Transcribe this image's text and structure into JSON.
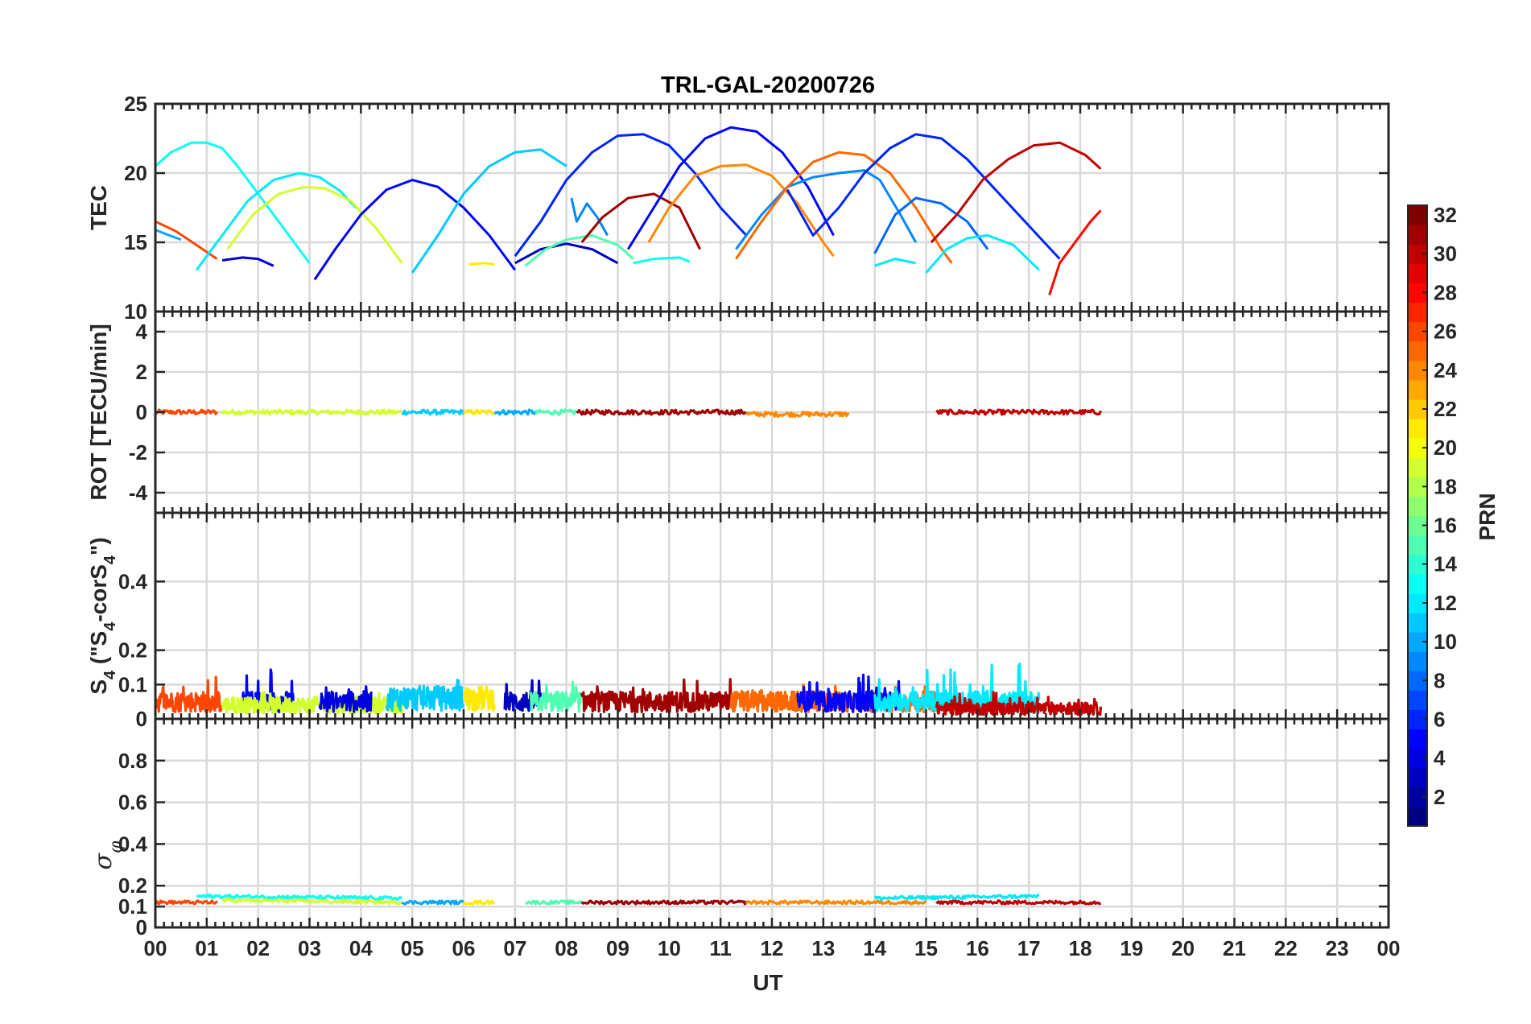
{
  "figure": {
    "title": "TRL-GAL-20200726",
    "xlabel": "UT",
    "x_ticks": [
      "00",
      "01",
      "02",
      "03",
      "04",
      "05",
      "06",
      "07",
      "08",
      "09",
      "10",
      "11",
      "12",
      "13",
      "14",
      "15",
      "16",
      "17",
      "18",
      "19",
      "20",
      "21",
      "22",
      "23",
      "00"
    ],
    "colorbar": {
      "label": "PRN",
      "ticks": [
        "2",
        "4",
        "6",
        "8",
        "10",
        "12",
        "14",
        "16",
        "18",
        "20",
        "22",
        "24",
        "26",
        "28",
        "30",
        "32"
      ],
      "range": [
        1,
        32
      ],
      "colormap": "jet"
    }
  },
  "chart_data": [
    {
      "panel": "tec",
      "type": "line",
      "ylabel": "TEC",
      "ylim": [
        10,
        25
      ],
      "y_ticks": [
        "10",
        "15",
        "20",
        "25"
      ],
      "xlim": [
        0,
        24
      ],
      "grid": true,
      "series": [
        {
          "prn": 13,
          "x": [
            0.0,
            0.3,
            0.7,
            1.0,
            1.3,
            1.6,
            2.0,
            2.4,
            2.8,
            3.0
          ],
          "y": [
            20.5,
            21.5,
            22.2,
            22.2,
            21.8,
            20.5,
            18.5,
            16.5,
            14.5,
            13.5
          ]
        },
        {
          "prn": 10,
          "x": [
            0.0,
            0.2,
            0.5
          ],
          "y": [
            15.9,
            15.6,
            15.2
          ]
        },
        {
          "prn": 26,
          "x": [
            0.0,
            0.4,
            0.8,
            1.2
          ],
          "y": [
            16.5,
            15.8,
            14.8,
            13.8
          ]
        },
        {
          "prn": 4,
          "x": [
            1.3,
            1.7,
            2.0,
            2.3
          ],
          "y": [
            13.7,
            13.9,
            13.8,
            13.3
          ]
        },
        {
          "prn": 12,
          "x": [
            0.8,
            1.3,
            1.8,
            2.3,
            2.8,
            3.2,
            3.6,
            3.9
          ],
          "y": [
            13.0,
            15.5,
            18.0,
            19.5,
            20.0,
            19.7,
            18.7,
            17.5
          ]
        },
        {
          "prn": 19,
          "x": [
            1.4,
            1.9,
            2.4,
            2.9,
            3.3,
            3.8,
            4.3,
            4.8
          ],
          "y": [
            14.5,
            17.0,
            18.5,
            19.0,
            18.9,
            18.0,
            16.0,
            13.5
          ]
        },
        {
          "prn": 5,
          "x": [
            3.1,
            3.5,
            4.0,
            4.5,
            5.0,
            5.5,
            6.0,
            6.5,
            7.0
          ],
          "y": [
            12.3,
            14.5,
            17.0,
            18.8,
            19.5,
            19.0,
            17.5,
            15.5,
            13.0
          ]
        },
        {
          "prn": 11,
          "x": [
            5.0,
            5.5,
            6.0,
            6.5,
            7.0,
            7.5,
            8.0
          ],
          "y": [
            12.8,
            15.5,
            18.5,
            20.5,
            21.5,
            21.7,
            20.5
          ]
        },
        {
          "prn": 21,
          "x": [
            6.1,
            6.4,
            6.6
          ],
          "y": [
            13.4,
            13.5,
            13.4
          ]
        },
        {
          "prn": 3,
          "x": [
            7.0,
            7.5,
            8.0,
            8.5,
            9.0
          ],
          "y": [
            13.5,
            14.5,
            14.9,
            14.5,
            13.5
          ]
        },
        {
          "prn": 6,
          "x": [
            7.0,
            7.5,
            8.0,
            8.5,
            9.0,
            9.5,
            10.0,
            10.5,
            11.0,
            11.5
          ],
          "y": [
            14.0,
            16.5,
            19.5,
            21.5,
            22.7,
            22.8,
            22.0,
            20.0,
            17.5,
            15.5
          ]
        },
        {
          "prn": 15,
          "x": [
            7.2,
            7.6,
            8.0,
            8.5,
            9.0,
            9.3
          ],
          "y": [
            13.3,
            14.5,
            15.2,
            15.5,
            14.8,
            13.8
          ]
        },
        {
          "prn": 9,
          "x": [
            8.1,
            8.2,
            8.4,
            8.6,
            8.8
          ],
          "y": [
            18.2,
            16.5,
            17.8,
            16.8,
            15.5
          ]
        },
        {
          "prn": 31,
          "x": [
            8.3,
            8.7,
            9.2,
            9.7,
            10.2,
            10.6
          ],
          "y": [
            15.0,
            16.8,
            18.2,
            18.5,
            17.5,
            14.5
          ]
        },
        {
          "prn": 13,
          "x": [
            9.3,
            9.7,
            10.2,
            10.4
          ],
          "y": [
            13.5,
            13.8,
            13.9,
            13.6
          ]
        },
        {
          "prn": 5,
          "x": [
            9.2,
            9.7,
            10.2,
            10.7,
            11.2,
            11.7,
            12.2,
            12.7,
            13.2
          ],
          "y": [
            14.5,
            17.5,
            20.5,
            22.5,
            23.3,
            23.0,
            21.5,
            19.0,
            15.5
          ]
        },
        {
          "prn": 24,
          "x": [
            9.6,
            10.0,
            10.5,
            11.0,
            11.5,
            12.0,
            12.5,
            13.0,
            13.2
          ],
          "y": [
            15.0,
            17.5,
            19.8,
            20.5,
            20.6,
            19.8,
            17.8,
            15.0,
            14.0
          ]
        },
        {
          "prn": 9,
          "x": [
            11.3,
            11.8,
            12.3,
            12.8,
            13.3,
            13.8,
            14.1,
            14.5,
            14.8
          ],
          "y": [
            14.5,
            17.0,
            19.0,
            19.7,
            20.0,
            20.2,
            19.5,
            17.0,
            15.0
          ]
        },
        {
          "prn": 25,
          "x": [
            11.3,
            11.8,
            12.3,
            12.8,
            13.3,
            13.8,
            14.3,
            14.8,
            15.3,
            15.5
          ],
          "y": [
            13.8,
            16.5,
            19.0,
            20.8,
            21.5,
            21.3,
            20.0,
            17.5,
            14.5,
            13.5
          ]
        },
        {
          "prn": 6,
          "x": [
            12.3,
            12.8,
            13.3,
            13.8,
            14.3,
            14.8,
            15.3,
            15.8,
            16.3,
            16.8,
            17.3,
            17.6
          ],
          "y": [
            18.8,
            15.5,
            17.5,
            20.0,
            21.8,
            22.8,
            22.5,
            21.0,
            19.0,
            17.0,
            15.0,
            13.8
          ]
        },
        {
          "prn": 8,
          "x": [
            14.0,
            14.4,
            14.8,
            15.3,
            15.8,
            16.2
          ],
          "y": [
            14.2,
            17.0,
            18.2,
            17.8,
            16.5,
            14.5
          ]
        },
        {
          "prn": 12,
          "x": [
            14.0,
            14.4,
            14.8
          ],
          "y": [
            13.3,
            13.8,
            13.5
          ]
        },
        {
          "prn": 12,
          "x": [
            15.0,
            15.4,
            15.8,
            16.2,
            16.7,
            17.2
          ],
          "y": [
            12.8,
            14.5,
            15.3,
            15.5,
            14.8,
            13.0
          ]
        },
        {
          "prn": 30,
          "x": [
            15.1,
            15.6,
            16.1,
            16.6,
            17.1,
            17.6,
            18.1,
            18.4
          ],
          "y": [
            15.0,
            17.0,
            19.5,
            21.0,
            22.0,
            22.2,
            21.3,
            20.3
          ]
        },
        {
          "prn": 28,
          "x": [
            17.4,
            17.6,
            17.9,
            18.2,
            18.4
          ],
          "y": [
            11.2,
            13.5,
            15.0,
            16.5,
            17.3
          ]
        }
      ]
    },
    {
      "panel": "rot",
      "type": "line",
      "ylabel": "ROT [TECU/min]",
      "ylim": [
        -5,
        5
      ],
      "y_ticks": [
        "-4",
        "-2",
        "0",
        "2",
        "4"
      ],
      "xlim": [
        0,
        24
      ],
      "grid": true,
      "series": [
        {
          "prn": 26,
          "x": [
            0.0,
            1.2
          ],
          "y": [
            0.0,
            0.0
          ]
        },
        {
          "prn": 19,
          "x": [
            1.3,
            4.8
          ],
          "y": [
            0.0,
            0.0
          ]
        },
        {
          "prn": 11,
          "x": [
            4.8,
            6.0
          ],
          "y": [
            0.0,
            0.0
          ]
        },
        {
          "prn": 21,
          "x": [
            6.0,
            6.6
          ],
          "y": [
            0.0,
            0.0
          ]
        },
        {
          "prn": 10,
          "x": [
            6.6,
            7.4
          ],
          "y": [
            0.0,
            0.0
          ]
        },
        {
          "prn": 15,
          "x": [
            7.4,
            8.2
          ],
          "y": [
            0.0,
            0.0
          ]
        },
        {
          "prn": 31,
          "x": [
            8.2,
            11.5
          ],
          "y": [
            0.0,
            0.0
          ]
        },
        {
          "prn": 24,
          "x": [
            11.5,
            13.5
          ],
          "y": [
            -0.1,
            -0.1
          ]
        },
        {
          "prn": 30,
          "x": [
            15.2,
            18.4
          ],
          "y": [
            0.0,
            0.0
          ]
        }
      ]
    },
    {
      "panel": "s4",
      "type": "line",
      "ylabel": "S_4 (\"S_4-corS_4\")",
      "ylabel_parts": {
        "s": "S",
        "sub": "4",
        "mid": " (\"S",
        "sub2": "4",
        "end": "-corS",
        "sub3": "4",
        "tail": "\")"
      },
      "ylim": [
        0,
        0.6
      ],
      "y_ticks": [
        "0",
        "0.1",
        "0.2",
        "0.4"
      ],
      "xlim": [
        0,
        24
      ],
      "grid": true,
      "series": [
        {
          "prn": 26,
          "x": [
            0.0,
            1.3
          ],
          "y_mean": 0.05,
          "y_max": 0.13
        },
        {
          "prn": 5,
          "x": [
            1.7,
            2.7
          ],
          "y_mean": 0.05,
          "y_max": 0.15
        },
        {
          "prn": 19,
          "x": [
            1.3,
            4.8
          ],
          "y_mean": 0.04,
          "y_max": 0.08
        },
        {
          "prn": 4,
          "x": [
            3.2,
            4.2
          ],
          "y_mean": 0.05,
          "y_max": 0.12
        },
        {
          "prn": 11,
          "x": [
            4.5,
            6.0
          ],
          "y_mean": 0.06,
          "y_max": 0.13
        },
        {
          "prn": 21,
          "x": [
            6.0,
            6.6
          ],
          "y_mean": 0.06,
          "y_max": 0.13
        },
        {
          "prn": 3,
          "x": [
            6.8,
            7.5
          ],
          "y_mean": 0.05,
          "y_max": 0.12
        },
        {
          "prn": 15,
          "x": [
            7.3,
            8.3
          ],
          "y_mean": 0.05,
          "y_max": 0.11
        },
        {
          "prn": 31,
          "x": [
            8.3,
            11.2
          ],
          "y_mean": 0.05,
          "y_max": 0.12
        },
        {
          "prn": 25,
          "x": [
            11.2,
            15.5
          ],
          "y_mean": 0.05,
          "y_max": 0.1
        },
        {
          "prn": 5,
          "x": [
            12.5,
            14.5
          ],
          "y_mean": 0.05,
          "y_max": 0.13
        },
        {
          "prn": 12,
          "x": [
            14.0,
            17.2
          ],
          "y_mean": 0.05,
          "y_max": 0.16
        },
        {
          "prn": 30,
          "x": [
            15.2,
            18.4
          ],
          "y_mean": 0.03,
          "y_max": 0.08
        }
      ]
    },
    {
      "panel": "sigma_phi",
      "type": "line",
      "ylabel": "σ_φ",
      "ylim": [
        0,
        1
      ],
      "y_ticks": [
        "0",
        "0.1",
        "0.2",
        "0.4",
        "0.6",
        "0.8"
      ],
      "xlim": [
        0,
        24
      ],
      "grid": true,
      "series": [
        {
          "prn": 26,
          "x": [
            0.0,
            1.2
          ],
          "y": [
            0.12,
            0.12
          ]
        },
        {
          "prn": 13,
          "x": [
            0.8,
            4.8
          ],
          "y": [
            0.15,
            0.14
          ]
        },
        {
          "prn": 19,
          "x": [
            1.3,
            4.8
          ],
          "y": [
            0.13,
            0.12
          ]
        },
        {
          "prn": 10,
          "x": [
            4.8,
            6.0
          ],
          "y": [
            0.12,
            0.12
          ]
        },
        {
          "prn": 21,
          "x": [
            6.0,
            6.6
          ],
          "y": [
            0.12,
            0.12
          ]
        },
        {
          "prn": 15,
          "x": [
            7.2,
            8.3
          ],
          "y": [
            0.12,
            0.12
          ]
        },
        {
          "prn": 31,
          "x": [
            8.3,
            11.5
          ],
          "y": [
            0.12,
            0.12
          ]
        },
        {
          "prn": 24,
          "x": [
            11.5,
            15.0
          ],
          "y": [
            0.12,
            0.12
          ]
        },
        {
          "prn": 12,
          "x": [
            14.0,
            17.2
          ],
          "y": [
            0.14,
            0.15
          ]
        },
        {
          "prn": 30,
          "x": [
            15.2,
            18.4
          ],
          "y": [
            0.12,
            0.12
          ]
        }
      ]
    }
  ]
}
